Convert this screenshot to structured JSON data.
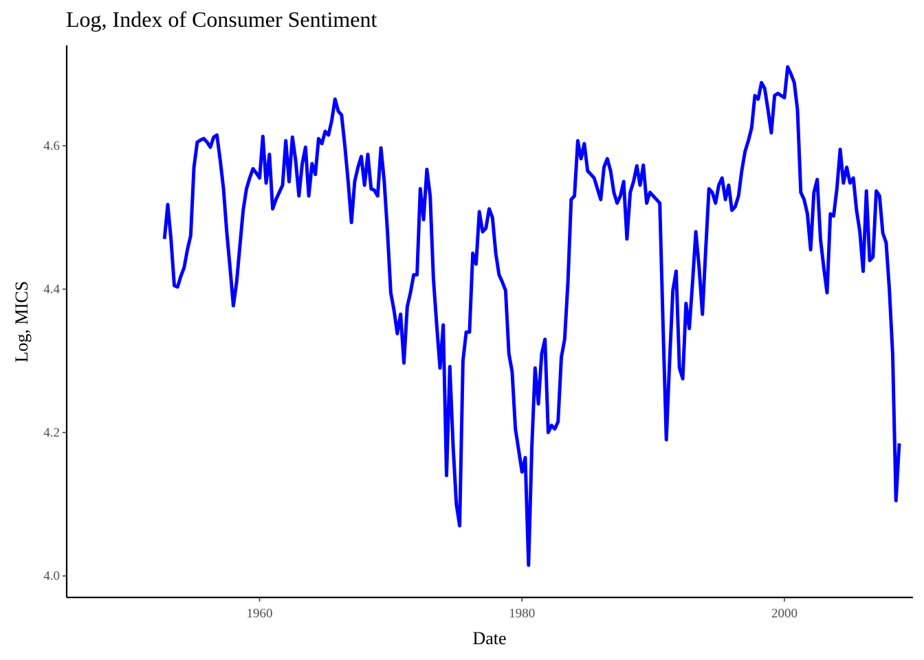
{
  "chart_data": {
    "type": "line",
    "title": "Log, Index of Consumer Sentiment",
    "xlabel": "Date",
    "ylabel": "Log, MICS",
    "xlim": [
      1945.3,
      2009.8
    ],
    "ylim": [
      3.97,
      4.74
    ],
    "x_ticks": [
      1960,
      1980,
      2000
    ],
    "x_tick_labels": [
      "1960",
      "1980",
      "2000"
    ],
    "y_ticks": [
      4.0,
      4.2,
      4.4,
      4.6
    ],
    "y_tick_labels": [
      "4.0",
      "4.2",
      "4.4",
      "4.6"
    ],
    "grid": false,
    "legend": "none",
    "line_color": "#0000ff",
    "series": [
      {
        "x": [
          1952.75,
          1953.0,
          1953.25,
          1953.5,
          1953.75,
          1954.0,
          1954.25,
          1954.5,
          1954.75,
          1955.0,
          1955.25,
          1955.5,
          1955.75,
          1956.0,
          1956.25,
          1956.5,
          1956.75,
          1957.0,
          1957.25,
          1957.5,
          1957.75,
          1958.0,
          1958.25,
          1958.5,
          1958.75,
          1959.0,
          1959.25,
          1959.5,
          1959.75,
          1960.0,
          1960.25,
          1960.5,
          1960.75,
          1961.0,
          1961.25,
          1961.5,
          1961.75,
          1962.0,
          1962.25,
          1962.5,
          1962.75,
          1963.0,
          1963.25,
          1963.5,
          1963.75,
          1964.0,
          1964.25,
          1964.5,
          1964.75,
          1965.0,
          1965.25,
          1965.5,
          1965.75,
          1966.0,
          1966.25,
          1966.5,
          1966.75,
          1967.0,
          1967.25,
          1967.5,
          1967.75,
          1968.0,
          1968.25,
          1968.5,
          1968.75,
          1969.0,
          1969.25,
          1969.5,
          1969.75,
          1970.0,
          1970.25,
          1970.5,
          1970.75,
          1971.0,
          1971.25,
          1971.5,
          1971.75,
          1972.0,
          1972.25,
          1972.5,
          1972.75,
          1973.0,
          1973.25,
          1973.5,
          1973.75,
          1974.0,
          1974.25,
          1974.5,
          1974.75,
          1975.0,
          1975.25,
          1975.5,
          1975.75,
          1976.0,
          1976.25,
          1976.5,
          1976.75,
          1977.0,
          1977.25,
          1977.5,
          1977.75,
          1978.0,
          1978.25,
          1978.5,
          1978.75,
          1979.0,
          1979.25,
          1979.5,
          1979.75,
          1980.0,
          1980.25,
          1980.5,
          1980.75,
          1981.0,
          1981.25,
          1981.5,
          1981.75,
          1982.0,
          1982.25,
          1982.5,
          1982.75,
          1983.0,
          1983.25,
          1983.5,
          1983.75,
          1984.0,
          1984.25,
          1984.5,
          1984.75,
          1985.0,
          1985.25,
          1985.5,
          1985.75,
          1986.0,
          1986.25,
          1986.5,
          1986.75,
          1987.0,
          1987.25,
          1987.5,
          1987.75,
          1988.0,
          1988.25,
          1988.5,
          1988.75,
          1989.0,
          1989.25,
          1989.5,
          1989.75,
          1990.0,
          1990.25,
          1990.5,
          1990.75,
          1991.0,
          1991.25,
          1991.5,
          1991.75,
          1992.0,
          1992.25,
          1992.5,
          1992.75,
          1993.0,
          1993.25,
          1993.5,
          1993.75,
          1994.0,
          1994.25,
          1994.5,
          1994.75,
          1995.0,
          1995.25,
          1995.5,
          1995.75,
          1996.0,
          1996.25,
          1996.5,
          1996.75,
          1997.0,
          1997.25,
          1997.5,
          1997.75,
          1998.0,
          1998.25,
          1998.5,
          1998.75,
          1999.0,
          1999.25,
          1999.5,
          1999.75,
          2000.0,
          2000.25,
          2000.5,
          2000.75,
          2001.0,
          2001.25,
          2001.5,
          2001.75,
          2002.0,
          2002.25,
          2002.5,
          2002.75,
          2003.0,
          2003.25,
          2003.5,
          2003.75,
          2004.0,
          2004.25,
          2004.5,
          2004.75,
          2005.0,
          2005.25,
          2005.5,
          2005.75,
          2006.0,
          2006.25,
          2006.5,
          2006.75,
          2007.0,
          2007.25,
          2007.5,
          2007.75,
          2008.0,
          2008.25,
          2008.5,
          2008.75
        ],
        "y": [
          4.47,
          4.518,
          4.47,
          4.405,
          4.403,
          4.418,
          4.43,
          4.455,
          4.475,
          4.57,
          4.605,
          4.608,
          4.61,
          4.605,
          4.598,
          4.612,
          4.615,
          4.58,
          4.54,
          4.48,
          4.43,
          4.377,
          4.41,
          4.46,
          4.51,
          4.54,
          4.555,
          4.568,
          4.562,
          4.555,
          4.613,
          4.548,
          4.588,
          4.512,
          4.525,
          4.535,
          4.545,
          4.607,
          4.55,
          4.612,
          4.58,
          4.53,
          4.575,
          4.598,
          4.53,
          4.575,
          4.56,
          4.61,
          4.603,
          4.62,
          4.615,
          4.635,
          4.665,
          4.648,
          4.643,
          4.6,
          4.55,
          4.493,
          4.55,
          4.57,
          4.585,
          4.545,
          4.588,
          4.54,
          4.538,
          4.53,
          4.597,
          4.55,
          4.48,
          4.395,
          4.37,
          4.338,
          4.365,
          4.297,
          4.375,
          4.395,
          4.42,
          4.42,
          4.54,
          4.497,
          4.567,
          4.53,
          4.415,
          4.35,
          4.29,
          4.35,
          4.14,
          4.292,
          4.18,
          4.1,
          4.07,
          4.3,
          4.34,
          4.34,
          4.45,
          4.435,
          4.508,
          4.48,
          4.485,
          4.512,
          4.5,
          4.45,
          4.42,
          4.41,
          4.398,
          4.31,
          4.285,
          4.205,
          4.175,
          4.145,
          4.165,
          4.015,
          4.18,
          4.29,
          4.24,
          4.31,
          4.33,
          4.2,
          4.21,
          4.205,
          4.215,
          4.305,
          4.33,
          4.41,
          4.525,
          4.53,
          4.607,
          4.582,
          4.603,
          4.565,
          4.56,
          4.555,
          4.54,
          4.525,
          4.57,
          4.582,
          4.565,
          4.535,
          4.52,
          4.53,
          4.55,
          4.47,
          4.535,
          4.55,
          4.572,
          4.545,
          4.573,
          4.52,
          4.535,
          4.53,
          4.525,
          4.52,
          4.35,
          4.19,
          4.3,
          4.398,
          4.425,
          4.29,
          4.275,
          4.38,
          4.345,
          4.41,
          4.48,
          4.43,
          4.365,
          4.455,
          4.54,
          4.535,
          4.52,
          4.545,
          4.555,
          4.525,
          4.545,
          4.51,
          4.515,
          4.53,
          4.565,
          4.592,
          4.607,
          4.625,
          4.67,
          4.665,
          4.688,
          4.68,
          4.65,
          4.618,
          4.67,
          4.673,
          4.67,
          4.667,
          4.71,
          4.7,
          4.688,
          4.65,
          4.535,
          4.525,
          4.505,
          4.455,
          4.535,
          4.553,
          4.47,
          4.43,
          4.395,
          4.505,
          4.502,
          4.54,
          4.595,
          4.548,
          4.57,
          4.548,
          4.555,
          4.51,
          4.48,
          4.425,
          4.537,
          4.44,
          4.445,
          4.537,
          4.53,
          4.478,
          4.465,
          4.4,
          4.31,
          4.105,
          4.185
        ]
      }
    ]
  }
}
